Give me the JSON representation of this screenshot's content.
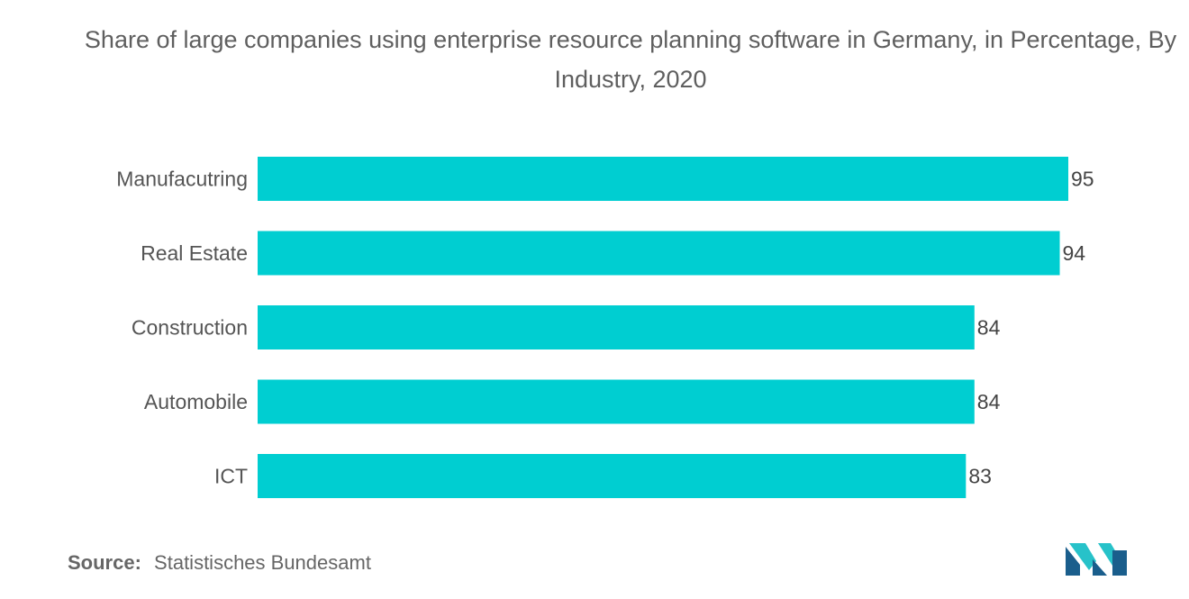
{
  "chart_data": {
    "type": "bar",
    "orientation": "horizontal",
    "title": "Share of large companies using enterprise resource planning software in Germany, in Percentage, By Industry, 2020",
    "categories": [
      "Manufacutring",
      "Real Estate",
      "Construction",
      "Automobile",
      "ICT"
    ],
    "values": [
      95,
      94,
      84,
      84,
      83
    ],
    "xlabel": "",
    "ylabel": "",
    "xlim": [
      0,
      100
    ],
    "grid": false,
    "bar_color": "#00CED1",
    "data_labels": true
  },
  "source": {
    "label": "Source:",
    "text": "Statistisches Bundesamt"
  },
  "logo": {
    "icon": "mordor-intelligence-logo",
    "colors": [
      "#1a5e8c",
      "#27c2c9"
    ]
  }
}
